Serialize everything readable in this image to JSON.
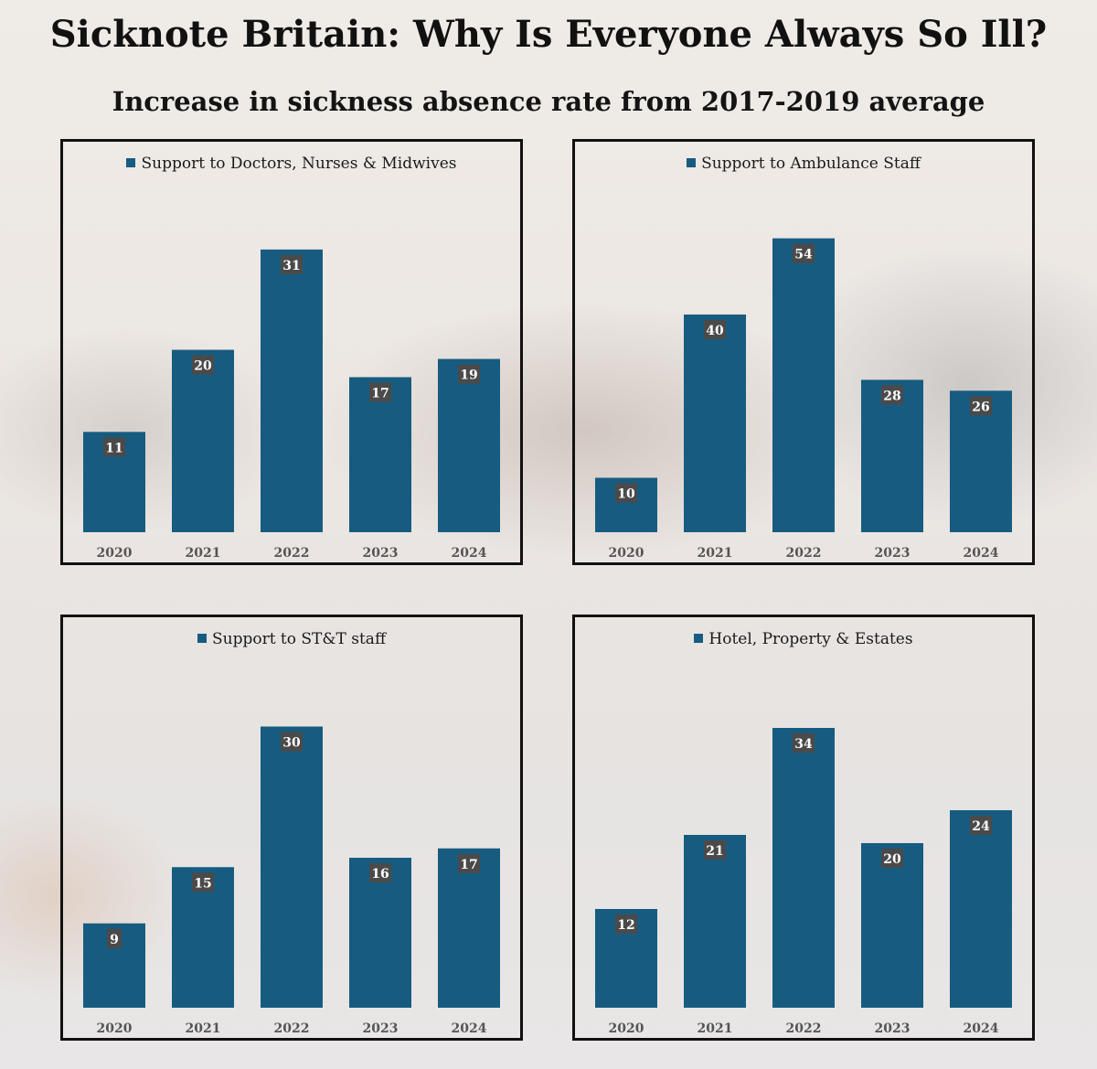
{
  "title": "Sicknote Britain: Why Is Everyone Always So Ill?",
  "subtitle": "Increase in sickness absence rate from 2017-2019 average",
  "colors": {
    "bar": "#175c80",
    "label_bg": "#4a4a4a",
    "label_text": "#ffffff",
    "axis_text": "#555555"
  },
  "chart_data": [
    {
      "type": "bar",
      "title": "",
      "legend": "Support to Doctors, Nurses & Midwives",
      "categories": [
        "2020",
        "2021",
        "2022",
        "2023",
        "2024"
      ],
      "series": [
        {
          "name": "Support to Doctors, Nurses & Midwives",
          "values": [
            11,
            20,
            31,
            17,
            19
          ]
        }
      ],
      "ylim": [
        0,
        37
      ],
      "grid": false,
      "legend_position": "top"
    },
    {
      "type": "bar",
      "title": "",
      "legend": "Support to Ambulance Staff",
      "categories": [
        "2020",
        "2021",
        "2022",
        "2023",
        "2024"
      ],
      "series": [
        {
          "name": "Support to Ambulance Staff",
          "values": [
            10,
            40,
            54,
            28,
            26
          ]
        }
      ],
      "ylim": [
        0,
        62
      ],
      "grid": false,
      "legend_position": "top"
    },
    {
      "type": "bar",
      "title": "",
      "legend": "Support to ST&T staff",
      "categories": [
        "2020",
        "2021",
        "2022",
        "2023",
        "2024"
      ],
      "series": [
        {
          "name": "Support to ST&T staff",
          "values": [
            9,
            15,
            30,
            16,
            17
          ]
        }
      ],
      "ylim": [
        0,
        36
      ],
      "grid": false,
      "legend_position": "top"
    },
    {
      "type": "bar",
      "title": "",
      "legend": "Hotel, Property & Estates",
      "categories": [
        "2020",
        "2021",
        "2022",
        "2023",
        "2024"
      ],
      "series": [
        {
          "name": "Hotel, Property & Estates",
          "values": [
            12,
            21,
            34,
            20,
            24
          ]
        }
      ],
      "ylim": [
        0,
        41
      ],
      "grid": false,
      "legend_position": "top"
    }
  ]
}
